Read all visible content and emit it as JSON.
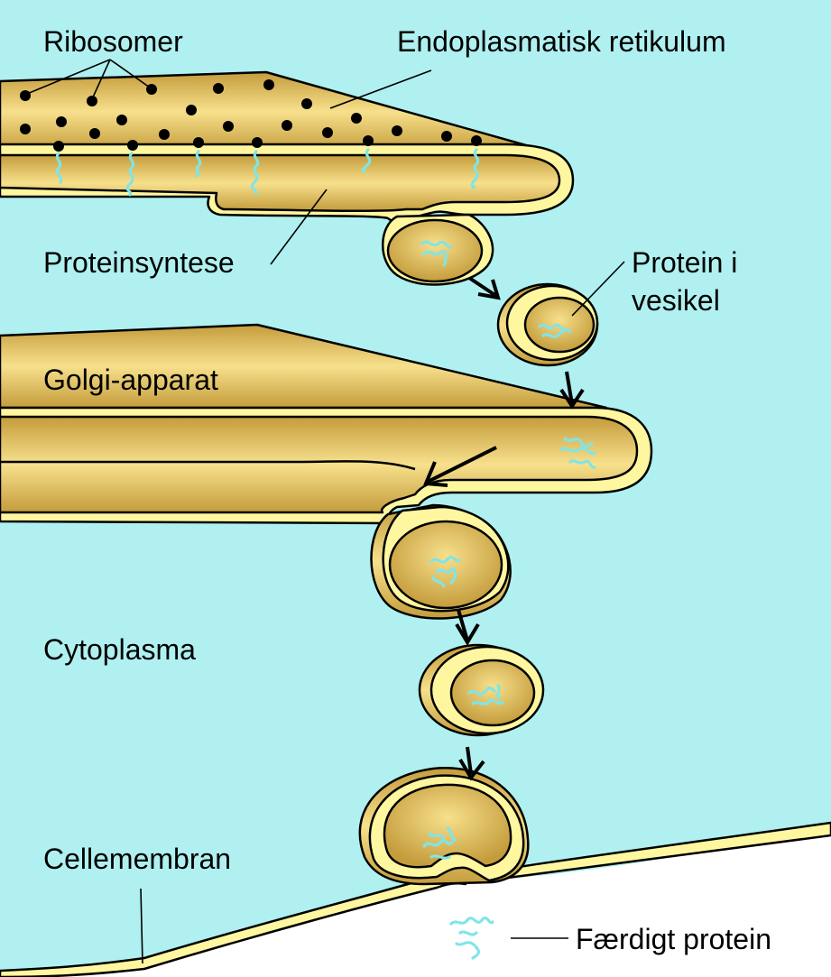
{
  "colors": {
    "cytoplasm": "#b0f0f0",
    "membrane_yellow": "#fff7a0",
    "organelle_gold": "#c49c3c",
    "organelle_highlight": "#f7e08c",
    "ribosome": "#000000",
    "protein": "#7fe5e8"
  },
  "labels": {
    "ribosomes": "Ribosomer",
    "er": "Endoplasmatisk retikulum",
    "protein_synthesis": "Proteinsyntese",
    "protein_in_vesicle_line1": "Protein i",
    "protein_in_vesicle_line2": "vesikel",
    "golgi": "Golgi-apparat",
    "cytoplasm": "Cytoplasma",
    "cell_membrane": "Cellemembran",
    "finished_protein": "Færdigt protein"
  }
}
